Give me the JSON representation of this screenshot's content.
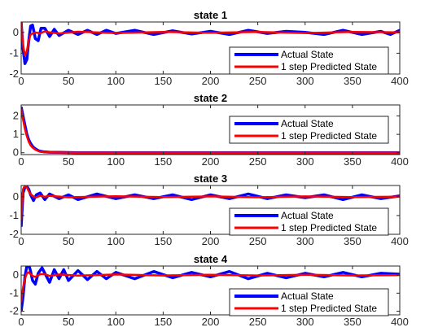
{
  "chart_data": [
    {
      "type": "line",
      "title": "state 1",
      "xlim": [
        0,
        400
      ],
      "ylim": [
        -2,
        0.5
      ],
      "xticks": [
        0,
        50,
        100,
        150,
        200,
        250,
        300,
        350,
        400
      ],
      "yticks": [
        -2,
        -1,
        0
      ],
      "legend_position": "lower-right",
      "series": [
        {
          "name": "Actual State",
          "color": "#0000ff",
          "x": [
            0,
            2,
            4,
            6,
            8,
            10,
            12,
            15,
            18,
            21,
            25,
            30,
            35,
            40,
            50,
            60,
            70,
            80,
            90,
            100,
            120,
            140,
            160,
            180,
            200,
            220,
            240,
            260,
            280,
            300,
            320,
            340,
            360,
            380,
            390,
            400
          ],
          "y": [
            0.5,
            -0.8,
            -1.5,
            -1.3,
            -0.4,
            0.3,
            0.35,
            -0.3,
            -0.4,
            0.2,
            0.2,
            -0.2,
            0.15,
            -0.15,
            0.1,
            -0.1,
            0.1,
            -0.1,
            0.1,
            -0.05,
            0.1,
            -0.1,
            0.08,
            -0.08,
            0.05,
            -0.1,
            0.1,
            -0.05,
            0.05,
            0.0,
            -0.1,
            0.1,
            -0.1,
            0.05,
            -0.1,
            0.1
          ]
        },
        {
          "name": "1 step Predicted State",
          "color": "#ff0000",
          "x": [
            0,
            2,
            4,
            6,
            8,
            10,
            15,
            20,
            25,
            30,
            40,
            60,
            100,
            150,
            200,
            250,
            300,
            350,
            400
          ],
          "y": [
            0.5,
            -0.6,
            -1.1,
            -0.9,
            -0.4,
            -0.1,
            0.0,
            -0.05,
            0.05,
            0.0,
            -0.05,
            0.03,
            -0.03,
            0.02,
            -0.02,
            0.02,
            -0.03,
            0.02,
            0.0
          ]
        }
      ]
    },
    {
      "type": "line",
      "title": "state 2",
      "xlim": [
        0,
        400
      ],
      "ylim": [
        -0.1,
        2.6
      ],
      "xticks": [
        0,
        50,
        100,
        150,
        200,
        250,
        300,
        350,
        400
      ],
      "yticks": [
        0,
        1,
        2
      ],
      "legend_position": "top-right",
      "series": [
        {
          "name": "Actual State",
          "color": "#0000ff",
          "x": [
            0,
            2,
            4,
            6,
            8,
            10,
            12,
            14,
            16,
            18,
            20,
            25,
            30,
            40,
            60,
            100,
            200,
            300,
            400
          ],
          "y": [
            2.5,
            2.0,
            1.5,
            1.0,
            0.7,
            0.5,
            0.35,
            0.25,
            0.18,
            0.12,
            0.08,
            0.04,
            0.03,
            0.02,
            0.0,
            0.0,
            0.0,
            0.0,
            0.0
          ]
        },
        {
          "name": "1 step Predicted State",
          "color": "#ff0000",
          "x": [
            0,
            2,
            4,
            6,
            8,
            10,
            12,
            14,
            16,
            18,
            20,
            25,
            30,
            40,
            60,
            100,
            200,
            300,
            400
          ],
          "y": [
            2.4,
            1.8,
            1.3,
            0.9,
            0.6,
            0.4,
            0.28,
            0.2,
            0.14,
            0.1,
            0.06,
            0.03,
            0.02,
            0.01,
            0.0,
            0.0,
            0.0,
            0.0,
            0.0
          ]
        }
      ]
    },
    {
      "type": "line",
      "title": "state 3",
      "xlim": [
        0,
        400
      ],
      "ylim": [
        -2,
        0.6
      ],
      "xticks": [
        0,
        50,
        100,
        150,
        200,
        250,
        300,
        350,
        400
      ],
      "yticks": [
        -2,
        -1,
        0
      ],
      "legend_position": "lower-right",
      "series": [
        {
          "name": "Actual State",
          "color": "#0000ff",
          "x": [
            0,
            2,
            4,
            6,
            8,
            10,
            13,
            16,
            20,
            25,
            30,
            40,
            50,
            60,
            80,
            100,
            120,
            140,
            160,
            180,
            200,
            220,
            240,
            260,
            280,
            300,
            320,
            340,
            360,
            380,
            400
          ],
          "y": [
            -1.6,
            0.2,
            0.5,
            0.55,
            0.4,
            0.1,
            -0.2,
            0.1,
            0.2,
            -0.15,
            0.15,
            -0.1,
            0.1,
            -0.15,
            0.15,
            -0.1,
            0.1,
            -0.1,
            0.1,
            -0.15,
            0.1,
            -0.1,
            0.15,
            -0.1,
            0.1,
            -0.05,
            0.1,
            -0.15,
            0.1,
            -0.1,
            0.05
          ]
        },
        {
          "name": "1 step Predicted State",
          "color": "#ff0000",
          "x": [
            0,
            2,
            4,
            6,
            8,
            10,
            12,
            15,
            20,
            25,
            30,
            50,
            100,
            150,
            200,
            250,
            300,
            350,
            400
          ],
          "y": [
            -1.2,
            0.4,
            0.6,
            0.5,
            0.3,
            0.15,
            0.05,
            -0.05,
            0.05,
            0.0,
            0.05,
            -0.03,
            0.03,
            -0.02,
            0.02,
            -0.03,
            0.02,
            -0.02,
            0.0
          ]
        }
      ]
    },
    {
      "type": "line",
      "title": "state 4",
      "xlim": [
        0,
        400
      ],
      "ylim": [
        -2.2,
        0.5
      ],
      "xticks": [
        0,
        50,
        100,
        150,
        200,
        250,
        300,
        350,
        400
      ],
      "yticks": [
        -2,
        -1,
        0
      ],
      "legend_position": "lower-right",
      "series": [
        {
          "name": "Actual State",
          "color": "#0000ff",
          "x": [
            0,
            2,
            4,
            6,
            8,
            10,
            12,
            15,
            18,
            22,
            26,
            30,
            35,
            40,
            45,
            50,
            60,
            70,
            80,
            90,
            100,
            120,
            140,
            160,
            180,
            200,
            220,
            240,
            260,
            280,
            300,
            320,
            340,
            360,
            380,
            400
          ],
          "y": [
            -2.0,
            -1.2,
            -0.1,
            0.5,
            0.6,
            0.2,
            -0.3,
            -0.5,
            0.1,
            0.4,
            0.0,
            -0.4,
            0.3,
            -0.2,
            0.3,
            -0.3,
            0.25,
            -0.25,
            0.2,
            -0.2,
            0.15,
            -0.2,
            0.2,
            -0.15,
            0.15,
            -0.1,
            0.2,
            -0.2,
            0.1,
            -0.15,
            0.1,
            -0.1,
            0.15,
            -0.1,
            0.1,
            0.05
          ]
        },
        {
          "name": "1 step Predicted State",
          "color": "#ff0000",
          "x": [
            0,
            2,
            4,
            6,
            8,
            10,
            12,
            15,
            20,
            25,
            30,
            40,
            60,
            100,
            150,
            200,
            250,
            300,
            350,
            400
          ],
          "y": [
            -1.5,
            -0.7,
            -0.2,
            0.1,
            0.15,
            0.05,
            -0.05,
            -0.1,
            0.05,
            0.05,
            -0.05,
            0.03,
            -0.03,
            0.03,
            -0.02,
            0.02,
            -0.02,
            0.02,
            -0.02,
            0.0
          ]
        }
      ]
    }
  ]
}
